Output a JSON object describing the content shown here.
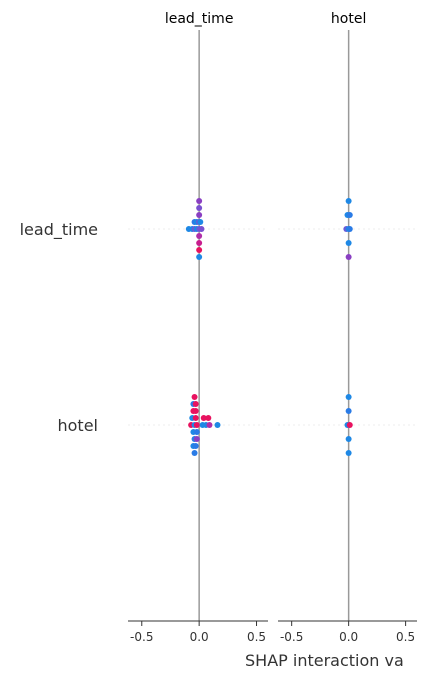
{
  "chart_data": {
    "type": "scatter",
    "title": "",
    "xlabel": "SHAP interaction va",
    "panels": [
      {
        "title": "lead_time",
        "xlim": [
          -0.62,
          0.6
        ],
        "xticks": [
          "-0.5",
          "0.0",
          "0.5"
        ],
        "rows": [
          {
            "feature": "lead_time",
            "points": [
              {
                "x": 0.0,
                "y": -4,
                "c": "#8a3fc2"
              },
              {
                "x": 0.0,
                "y": -3,
                "c": "#7a50d0"
              },
              {
                "x": 0.0,
                "y": -2,
                "c": "#8a3fc2"
              },
              {
                "x": -0.04,
                "y": -1,
                "c": "#2a7be6"
              },
              {
                "x": -0.02,
                "y": -1,
                "c": "#1e88e5"
              },
              {
                "x": 0.0,
                "y": -1,
                "c": "#7a50d0"
              },
              {
                "x": 0.01,
                "y": -1,
                "c": "#1e88e5"
              },
              {
                "x": -0.09,
                "y": 0,
                "c": "#1e88e5"
              },
              {
                "x": -0.06,
                "y": 0,
                "c": "#1e88e5"
              },
              {
                "x": -0.04,
                "y": 0,
                "c": "#6a5ad8"
              },
              {
                "x": -0.02,
                "y": 0,
                "c": "#1e88e5"
              },
              {
                "x": 0.0,
                "y": 0,
                "c": "#6a5ad8"
              },
              {
                "x": 0.02,
                "y": 0,
                "c": "#7a50d0"
              },
              {
                "x": 0.0,
                "y": 1,
                "c": "#b02ea8"
              },
              {
                "x": 0.0,
                "y": 2,
                "c": "#c81d8e"
              },
              {
                "x": 0.0,
                "y": 3,
                "c": "#e8125f"
              },
              {
                "x": 0.0,
                "y": 4,
                "c": "#1e88e5"
              }
            ]
          },
          {
            "feature": "hotel",
            "points": [
              {
                "x": -0.04,
                "y": -4,
                "c": "#e8125f"
              },
              {
                "x": -0.05,
                "y": -3,
                "c": "#2a7be6"
              },
              {
                "x": -0.03,
                "y": -3,
                "c": "#e8125f"
              },
              {
                "x": -0.05,
                "y": -2,
                "c": "#e8125f"
              },
              {
                "x": -0.03,
                "y": -2,
                "c": "#e8125f"
              },
              {
                "x": -0.06,
                "y": -1,
                "c": "#1e88e5"
              },
              {
                "x": -0.03,
                "y": -1,
                "c": "#e8125f"
              },
              {
                "x": 0.04,
                "y": -1,
                "c": "#e8125f"
              },
              {
                "x": 0.08,
                "y": -1,
                "c": "#e8125f"
              },
              {
                "x": -0.07,
                "y": 0,
                "c": "#e8125f"
              },
              {
                "x": -0.04,
                "y": 0,
                "c": "#1e88e5"
              },
              {
                "x": -0.02,
                "y": 0,
                "c": "#e8125f"
              },
              {
                "x": 0.03,
                "y": 0,
                "c": "#1e88e5"
              },
              {
                "x": 0.06,
                "y": 0,
                "c": "#1e88e5"
              },
              {
                "x": 0.09,
                "y": 0,
                "c": "#b02ea8"
              },
              {
                "x": 0.16,
                "y": 0,
                "c": "#1e88e5"
              },
              {
                "x": -0.05,
                "y": 1,
                "c": "#1e88e5"
              },
              {
                "x": -0.02,
                "y": 1,
                "c": "#2a7be6"
              },
              {
                "x": -0.04,
                "y": 2,
                "c": "#2a7be6"
              },
              {
                "x": -0.02,
                "y": 2,
                "c": "#8a3fc2"
              },
              {
                "x": -0.05,
                "y": 3,
                "c": "#1e88e5"
              },
              {
                "x": -0.03,
                "y": 3,
                "c": "#2a7be6"
              },
              {
                "x": -0.04,
                "y": 4,
                "c": "#2a7be6"
              }
            ]
          }
        ]
      },
      {
        "title": "hotel",
        "xlim": [
          -0.62,
          0.6
        ],
        "xticks": [
          "-0.5",
          "0.0",
          "0.5"
        ],
        "rows": [
          {
            "feature": "lead_time",
            "points": [
              {
                "x": 0.0,
                "y": -4,
                "c": "#1e88e5"
              },
              {
                "x": -0.01,
                "y": -2,
                "c": "#1e88e5"
              },
              {
                "x": 0.01,
                "y": -2,
                "c": "#2a7be6"
              },
              {
                "x": -0.02,
                "y": 0,
                "c": "#6a5ad8"
              },
              {
                "x": 0.0,
                "y": 0,
                "c": "#1e88e5"
              },
              {
                "x": 0.01,
                "y": 0,
                "c": "#2a7be6"
              },
              {
                "x": 0.0,
                "y": 2,
                "c": "#1e88e5"
              },
              {
                "x": 0.0,
                "y": 4,
                "c": "#8a3fc2"
              }
            ]
          },
          {
            "feature": "hotel",
            "points": [
              {
                "x": 0.0,
                "y": -4,
                "c": "#1e88e5"
              },
              {
                "x": 0.0,
                "y": -2,
                "c": "#2a7be6"
              },
              {
                "x": -0.01,
                "y": 0,
                "c": "#1e88e5"
              },
              {
                "x": 0.01,
                "y": 0,
                "c": "#e8125f"
              },
              {
                "x": 0.0,
                "y": 2,
                "c": "#1e88e5"
              },
              {
                "x": 0.0,
                "y": 4,
                "c": "#1e88e5"
              }
            ]
          }
        ]
      }
    ],
    "row_labels": [
      "lead_time",
      "hotel"
    ],
    "colors": {
      "axis": "#333333",
      "zero_line": "#999999",
      "row_grid": "#eeeeee"
    }
  }
}
